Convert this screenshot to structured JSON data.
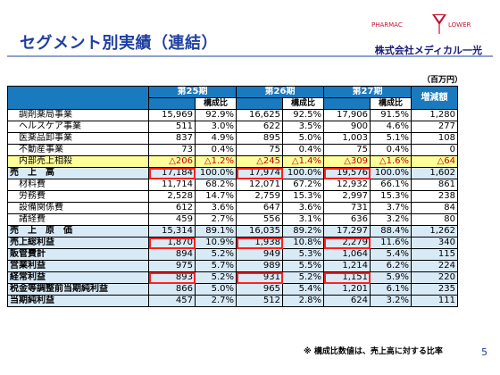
{
  "title": "セグメント別実績（連結）",
  "logo": {
    "brand_left": "PHARMAC",
    "brand_right": "LOWER",
    "company": "株式会社メディカル一光"
  },
  "unit": "（百万円）",
  "periods": [
    "第25期",
    "第26期",
    "第27期"
  ],
  "change_header": "増減額",
  "ratio_header": "構成比",
  "rows": [
    {
      "label": "調剤薬局事業",
      "style": "sub",
      "v": [
        "15,969",
        "92.9%",
        "16,625",
        "92.5%",
        "17,906",
        "91.5%",
        "1,280"
      ]
    },
    {
      "label": "ヘルスケア事業",
      "style": "sub",
      "v": [
        "511",
        "3.0%",
        "622",
        "3.5%",
        "900",
        "4.6%",
        "277"
      ]
    },
    {
      "label": "医薬品卸事業",
      "style": "sub",
      "v": [
        "837",
        "4.9%",
        "895",
        "5.0%",
        "1,003",
        "5.1%",
        "108"
      ]
    },
    {
      "label": "不動産事業",
      "style": "sub",
      "v": [
        "73",
        "0.4%",
        "75",
        "0.4%",
        "75",
        "0.4%",
        "0"
      ]
    },
    {
      "label": "内部売上相殺",
      "style": "adj",
      "v": [
        "△206",
        "△1.2%",
        "△245",
        "△1.4%",
        "△309",
        "△1.6%",
        "△64"
      ]
    },
    {
      "label": "売　上　高",
      "style": "total",
      "v": [
        "17,184",
        "100.0%",
        "17,974",
        "100.0%",
        "19,576",
        "100.0%",
        "1,602"
      ]
    },
    {
      "label": "材料費",
      "style": "sub",
      "v": [
        "11,714",
        "68.2%",
        "12,071",
        "67.2%",
        "12,932",
        "66.1%",
        "861"
      ]
    },
    {
      "label": "労務費",
      "style": "sub",
      "v": [
        "2,528",
        "14.7%",
        "2,759",
        "15.3%",
        "2,997",
        "15.3%",
        "238"
      ]
    },
    {
      "label": "設備関係費",
      "style": "sub",
      "v": [
        "612",
        "3.6%",
        "647",
        "3.6%",
        "731",
        "3.7%",
        "84"
      ]
    },
    {
      "label": "諸経費",
      "style": "sub",
      "v": [
        "459",
        "2.7%",
        "556",
        "3.1%",
        "636",
        "3.2%",
        "80"
      ]
    },
    {
      "label": "売　上　原　価",
      "style": "total",
      "v": [
        "15,314",
        "89.1%",
        "16,035",
        "89.2%",
        "17,297",
        "88.4%",
        "1,262"
      ]
    },
    {
      "label": "売上総利益",
      "style": "total",
      "v": [
        "1,870",
        "10.9%",
        "1,938",
        "10.8%",
        "2,279",
        "11.6%",
        "340"
      ]
    },
    {
      "label": "販管費計",
      "style": "total",
      "v": [
        "894",
        "5.2%",
        "949",
        "5.3%",
        "1,064",
        "5.4%",
        "115"
      ]
    },
    {
      "label": "営業利益",
      "style": "total",
      "v": [
        "975",
        "5.7%",
        "989",
        "5.5%",
        "1,214",
        "6.2%",
        "224"
      ]
    },
    {
      "label": "経常利益",
      "style": "total",
      "v": [
        "893",
        "5.2%",
        "931",
        "5.2%",
        "1,151",
        "5.9%",
        "220"
      ]
    },
    {
      "label": "税金等調整前当期純利益",
      "style": "total",
      "v": [
        "866",
        "5.0%",
        "965",
        "5.4%",
        "1,201",
        "6.1%",
        "235"
      ]
    },
    {
      "label": "当期純利益",
      "style": "total",
      "v": [
        "457",
        "2.7%",
        "512",
        "2.8%",
        "624",
        "3.2%",
        "111"
      ]
    }
  ],
  "note": "※ 構成比数値は、売上高に対する比率",
  "page": "5"
}
